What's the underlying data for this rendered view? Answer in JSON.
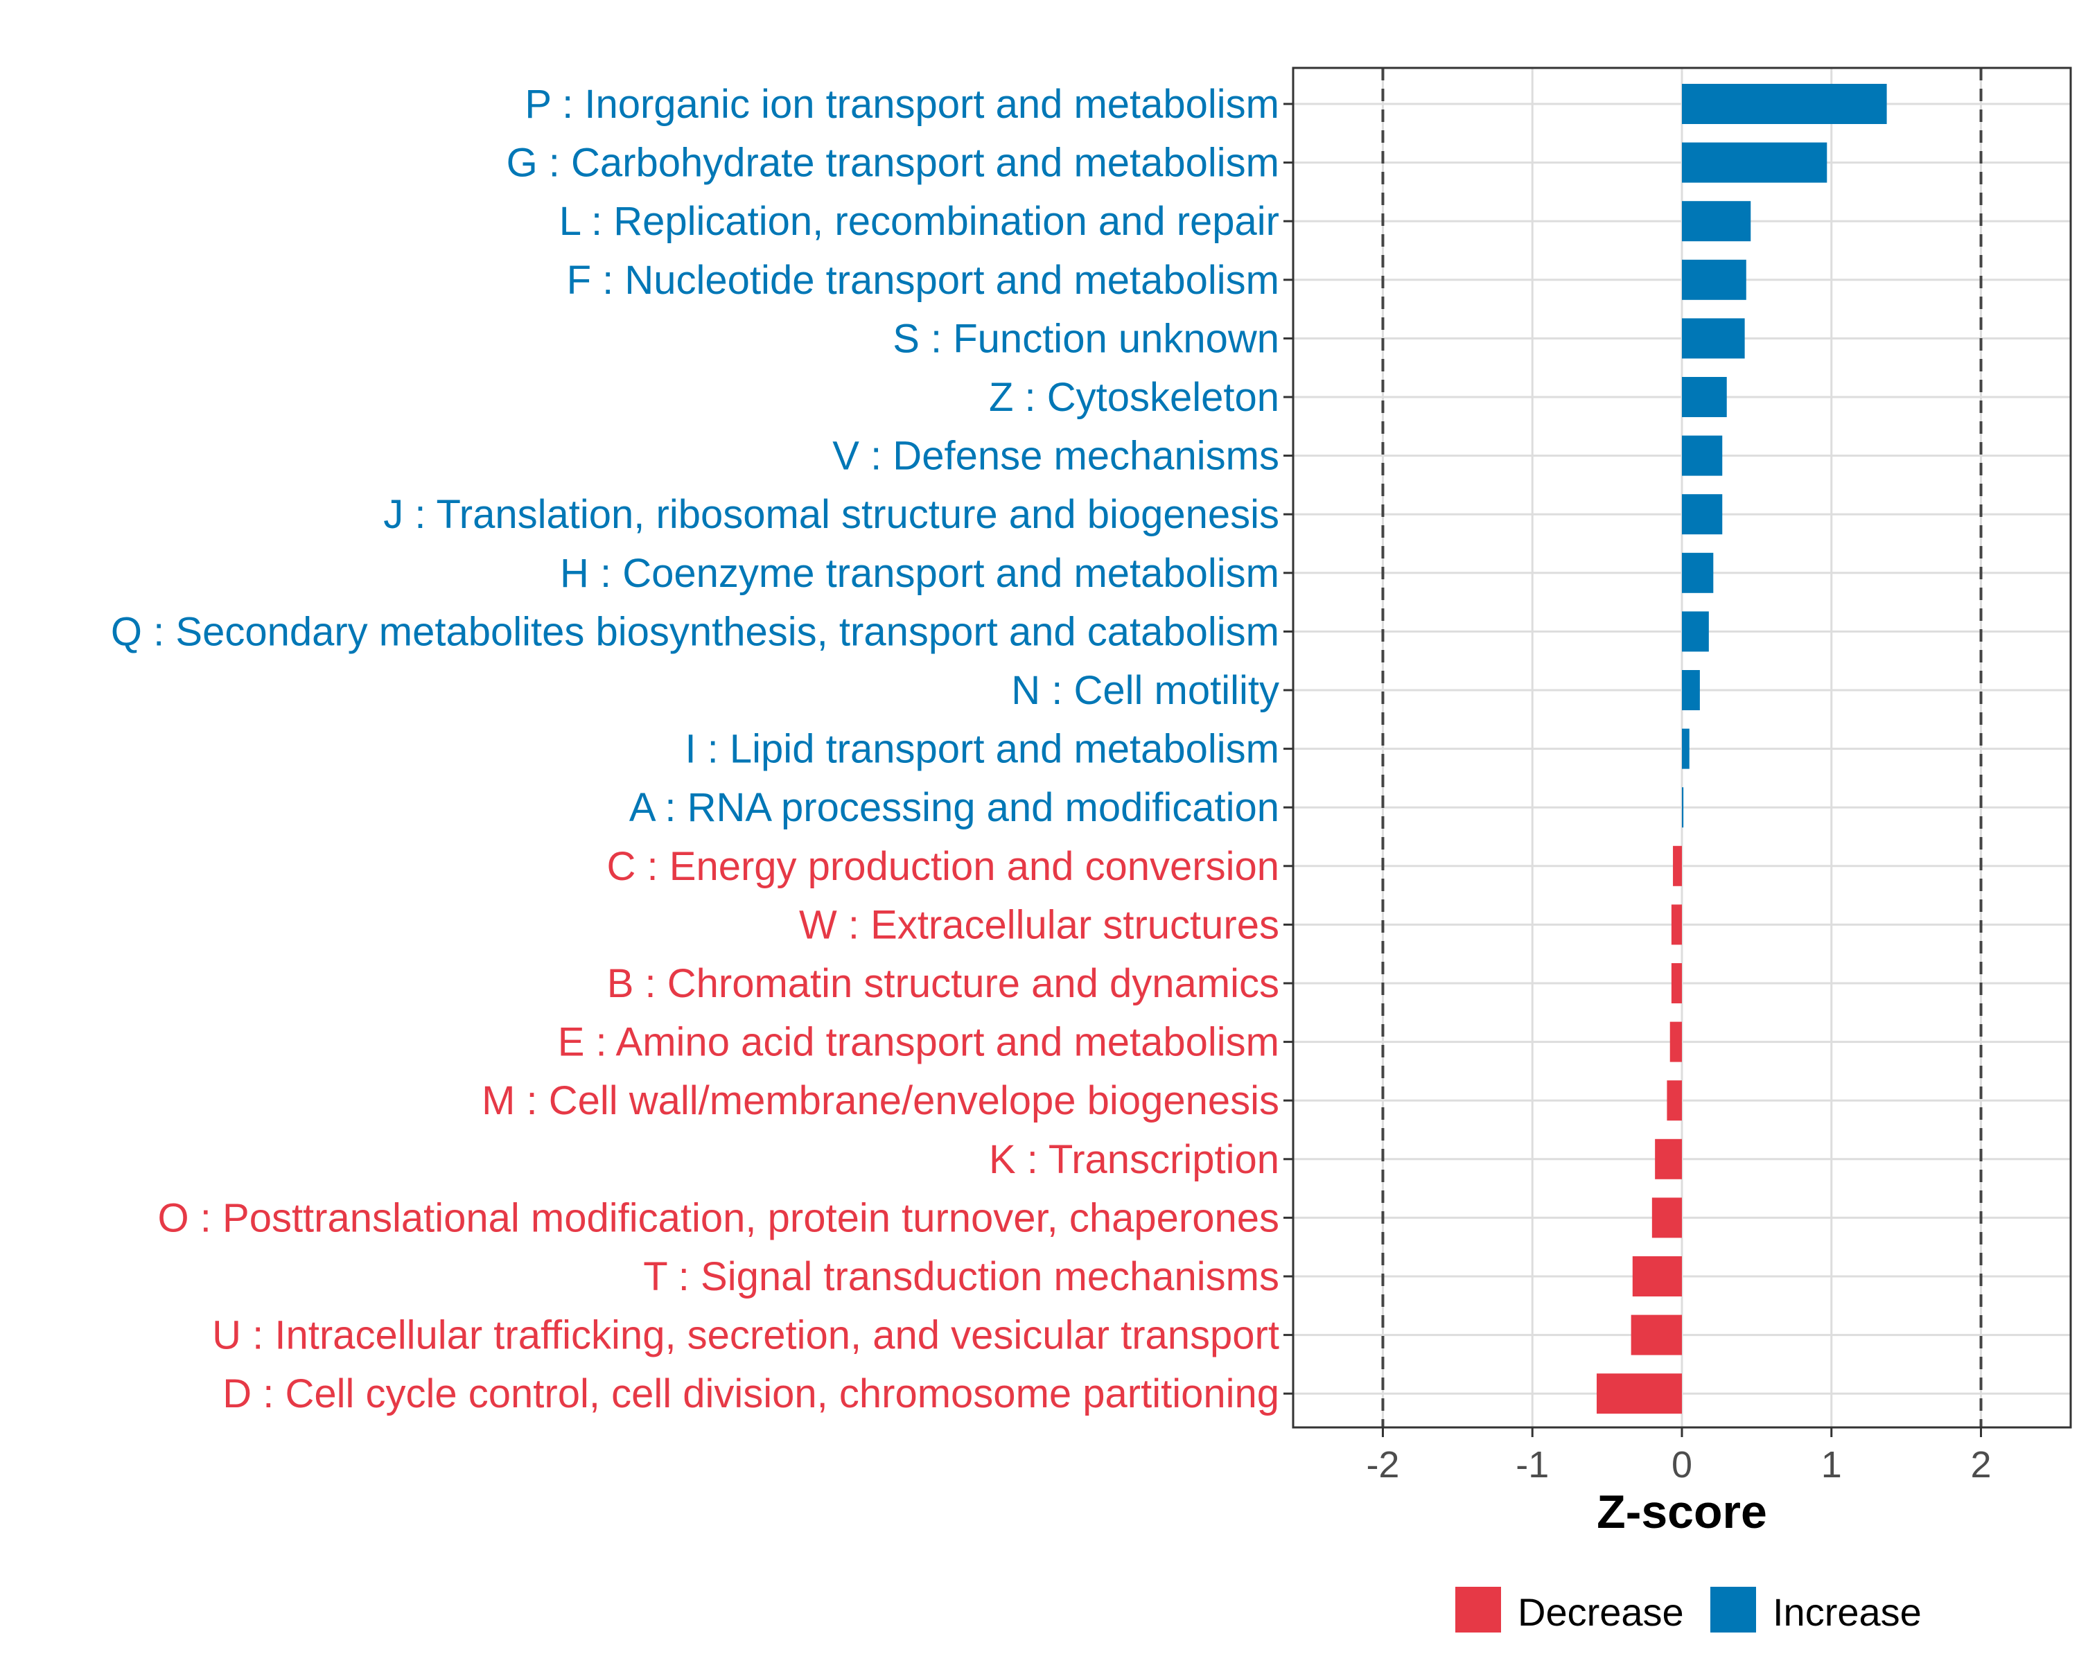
{
  "chart_data": {
    "type": "bar",
    "orientation": "horizontal",
    "xlabel": "Z-score",
    "xlim": [
      -2.6,
      2.6
    ],
    "xticks": [
      -2,
      -1,
      0,
      1,
      2
    ],
    "xtick_labels": [
      "-2",
      "-1",
      "0",
      "1",
      "2"
    ],
    "reference_lines": [
      -2,
      2
    ],
    "grid": true,
    "legend_position": "bottom",
    "colors": {
      "Decrease": "#e63946",
      "Increase": "#0077b6"
    },
    "legend": [
      {
        "name": "Decrease",
        "color": "#e63946"
      },
      {
        "name": "Increase",
        "color": "#0077b6"
      }
    ],
    "categories": [
      "P : Inorganic ion transport and metabolism",
      "G : Carbohydrate transport and metabolism",
      "L : Replication, recombination and repair",
      "F : Nucleotide transport and metabolism",
      "S : Function unknown",
      "Z : Cytoskeleton",
      "V : Defense mechanisms",
      "J : Translation, ribosomal structure and biogenesis",
      "H : Coenzyme transport and metabolism",
      "Q : Secondary metabolites biosynthesis, transport and catabolism",
      "N : Cell motility",
      "I : Lipid transport and metabolism",
      "A : RNA processing and modification",
      "C : Energy production and conversion",
      "W : Extracellular structures",
      "B : Chromatin structure and dynamics",
      "E : Amino acid transport and metabolism",
      "M : Cell wall/membrane/envelope biogenesis",
      "K : Transcription",
      "O : Posttranslational modification, protein turnover, chaperones",
      "T : Signal transduction mechanisms",
      "U : Intracellular trafficking, secretion, and vesicular transport",
      "D : Cell cycle control, cell division, chromosome partitioning"
    ],
    "values": [
      1.37,
      0.97,
      0.46,
      0.43,
      0.42,
      0.3,
      0.27,
      0.27,
      0.21,
      0.18,
      0.12,
      0.05,
      0.01,
      -0.06,
      -0.07,
      -0.07,
      -0.08,
      -0.1,
      -0.18,
      -0.2,
      -0.33,
      -0.34,
      -0.57
    ],
    "groups": [
      "Increase",
      "Increase",
      "Increase",
      "Increase",
      "Increase",
      "Increase",
      "Increase",
      "Increase",
      "Increase",
      "Increase",
      "Increase",
      "Increase",
      "Increase",
      "Decrease",
      "Decrease",
      "Decrease",
      "Decrease",
      "Decrease",
      "Decrease",
      "Decrease",
      "Decrease",
      "Decrease",
      "Decrease"
    ]
  }
}
